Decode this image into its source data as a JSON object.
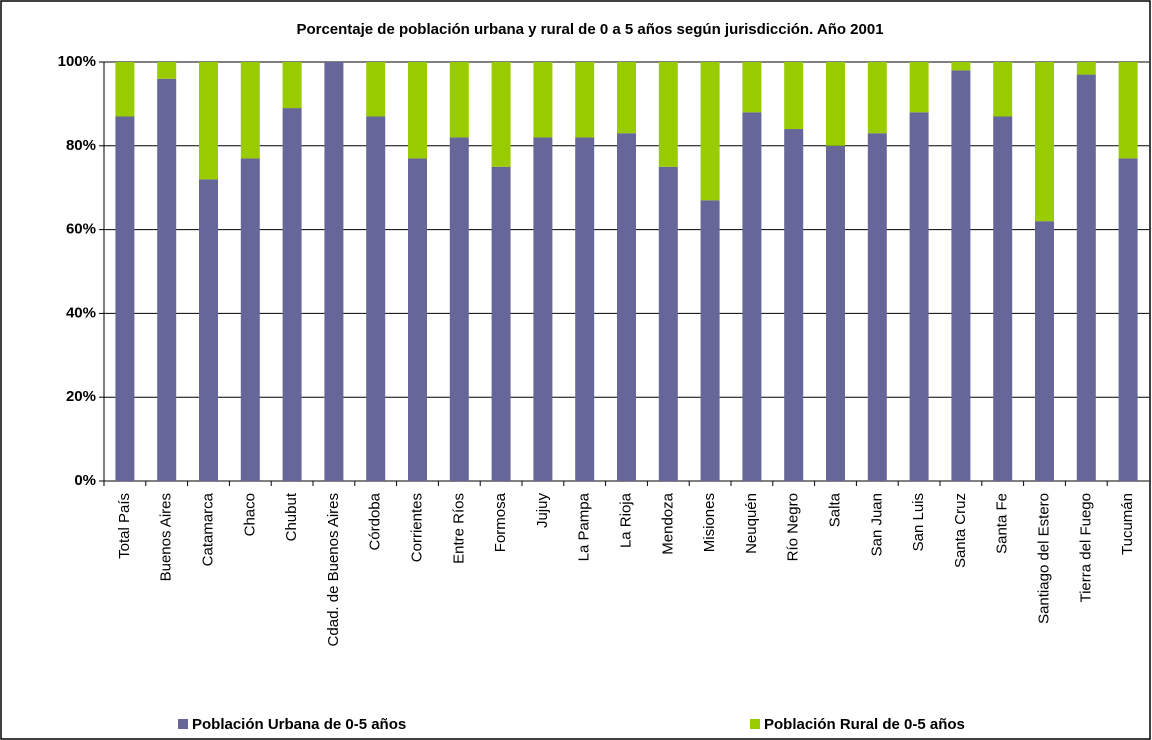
{
  "chart_data": {
    "type": "stacked_bar",
    "title": "Porcentaje de población urbana y rural de 0 a 5 años según jurisdicción. Año 2001",
    "categories": [
      "Total País",
      "Buenos Aires",
      "Catamarca",
      "Chaco",
      "Chubut",
      "Cdad. de Buenos Aires",
      "Córdoba",
      "Corrientes",
      "Entre Ríos",
      "Formosa",
      "Jujuy",
      "La Pampa",
      "La Rioja",
      "Mendoza",
      "Misiones",
      "Neuquén",
      "Río Negro",
      "Salta",
      "San Juan",
      "San Luis",
      "Santa Cruz",
      "Santa Fe",
      "Santiago del Estero",
      "Tierra del Fuego",
      "Tucumán"
    ],
    "series": [
      {
        "name": "Población Urbana de 0-5 años",
        "color": "#666699",
        "values": [
          87,
          96,
          72,
          77,
          89,
          100,
          87,
          77,
          82,
          75,
          82,
          82,
          83,
          75,
          67,
          88,
          84,
          80,
          83,
          88,
          98,
          87,
          62,
          97,
          77
        ]
      },
      {
        "name": "Población Rural de 0-5 años",
        "color": "#99cc00",
        "values": [
          13,
          4,
          28,
          23,
          11,
          0,
          13,
          23,
          18,
          25,
          18,
          18,
          17,
          25,
          33,
          12,
          16,
          20,
          17,
          12,
          2,
          13,
          38,
          3,
          23
        ]
      }
    ],
    "ylim": [
      0,
      100
    ],
    "yticks": [
      {
        "value": 0,
        "label": "0%"
      },
      {
        "value": 20,
        "label": "20%"
      },
      {
        "value": 40,
        "label": "40%"
      },
      {
        "value": 60,
        "label": "60%"
      },
      {
        "value": 80,
        "label": "80%"
      },
      {
        "value": 100,
        "label": "100%"
      }
    ],
    "grid": true,
    "legend": "bottom"
  }
}
